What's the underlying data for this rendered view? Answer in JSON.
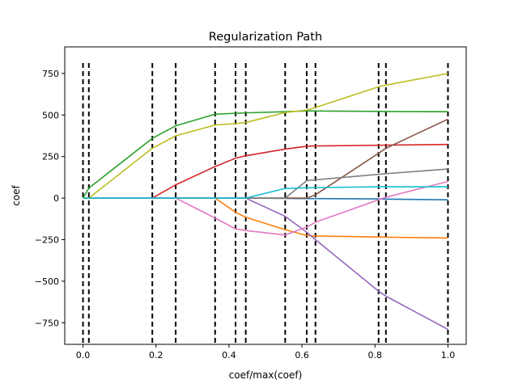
{
  "chart_data": {
    "type": "line",
    "title": "Regularization Path",
    "xlabel": "coef/max(coef)",
    "ylabel": "coef",
    "xlim": [
      -0.05,
      1.05
    ],
    "ylim": [
      -880,
      910
    ],
    "grid": false,
    "legend": "none",
    "x_ticks": [
      0.0,
      0.2,
      0.4,
      0.6,
      0.8,
      1.0
    ],
    "x_tick_labels": [
      "0.0",
      "0.2",
      "0.4",
      "0.6",
      "0.8",
      "1.0"
    ],
    "y_ticks": [
      750,
      500,
      250,
      0,
      -250,
      -500,
      -750
    ],
    "y_tick_labels": [
      "750",
      "500",
      "250",
      "0",
      "−250",
      "−500",
      "−750"
    ],
    "breakpoints": [
      0.0,
      0.016,
      0.19,
      0.254,
      0.362,
      0.418,
      0.446,
      0.554,
      0.613,
      0.637,
      0.81,
      0.83,
      1.0
    ],
    "breakpoint_range": [
      -870,
      830
    ],
    "x": [
      0.0,
      0.016,
      0.19,
      0.254,
      0.362,
      0.418,
      0.446,
      0.554,
      0.613,
      0.637,
      0.81,
      0.83,
      1.0
    ],
    "series": [
      {
        "color": "#1f77b4",
        "values": [
          0,
          0,
          0,
          0,
          0,
          0,
          0,
          -2,
          -3,
          -3,
          -5,
          -6,
          -10
        ]
      },
      {
        "color": "#ff7f0e",
        "values": [
          0,
          0,
          0,
          0,
          0,
          -85,
          -115,
          -190,
          -225,
          -228,
          -234,
          -235,
          -240
        ]
      },
      {
        "color": "#2ca02c",
        "values": [
          0,
          60,
          360,
          435,
          505,
          510,
          513,
          520,
          525,
          524,
          522,
          521,
          520
        ]
      },
      {
        "color": "#d62728",
        "values": [
          0,
          0,
          0,
          80,
          190,
          240,
          255,
          295,
          312,
          314,
          318,
          319,
          323
        ]
      },
      {
        "color": "#9467bd",
        "values": [
          0,
          0,
          0,
          0,
          0,
          0,
          0,
          -110,
          -205,
          -250,
          -560,
          -590,
          -790
        ]
      },
      {
        "color": "#8c564b",
        "values": [
          0,
          0,
          0,
          0,
          0,
          0,
          0,
          0,
          0,
          20,
          270,
          300,
          475
        ]
      },
      {
        "color": "#e377c2",
        "values": [
          0,
          0,
          0,
          0,
          -120,
          -185,
          -195,
          -222,
          -175,
          -145,
          -10,
          5,
          100
        ]
      },
      {
        "color": "#7f7f7f",
        "values": [
          0,
          0,
          0,
          0,
          0,
          0,
          0,
          0,
          105,
          110,
          143,
          147,
          175
        ]
      },
      {
        "color": "#bcbd22",
        "values": [
          0,
          0,
          300,
          375,
          440,
          448,
          455,
          515,
          530,
          545,
          670,
          680,
          750
        ]
      },
      {
        "color": "#17becf",
        "values": [
          0,
          0,
          0,
          0,
          0,
          0,
          0,
          58,
          62,
          63,
          68,
          68,
          68
        ]
      }
    ]
  }
}
